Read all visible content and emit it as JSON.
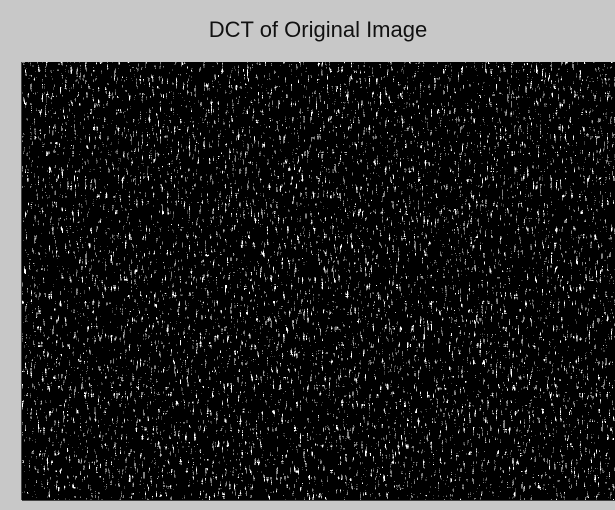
{
  "window": {
    "title": "DCT of Original Image"
  }
}
